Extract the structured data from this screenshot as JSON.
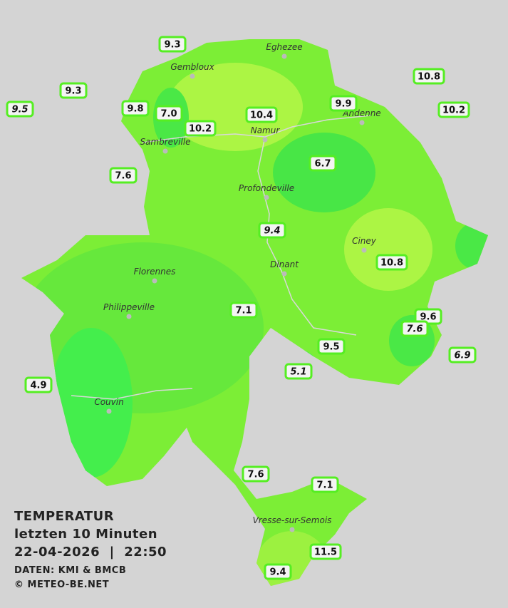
{
  "title": {
    "line1": "TEMPERATUR",
    "line2": "letzten 10 Minuten",
    "line3": "22-04-2026  |  22:50",
    "source": "DATEN: KMI & BMCB",
    "copyright": "© METEO-BE.NET"
  },
  "cities": [
    "Eghezee",
    "Gembloux",
    "Andenne",
    "Namur",
    "Sambreville",
    "Profondeville",
    "Ciney",
    "Dinant",
    "Florennes",
    "Philippeville",
    "Couvin",
    "Vresse-sur-Semois"
  ],
  "stations": [
    {
      "label": "9.3",
      "italic": false
    },
    {
      "label": "9.3",
      "italic": false
    },
    {
      "label": "9.5",
      "italic": true
    },
    {
      "label": "9.8",
      "italic": false
    },
    {
      "label": "7.0",
      "italic": false
    },
    {
      "label": "10.4",
      "italic": false
    },
    {
      "label": "10.2",
      "italic": false
    },
    {
      "label": "9.9",
      "italic": false
    },
    {
      "label": "10.8",
      "italic": false
    },
    {
      "label": "10.2",
      "italic": false
    },
    {
      "label": "7.6",
      "italic": false
    },
    {
      "label": "6.7",
      "italic": false
    },
    {
      "label": "9.4",
      "italic": true
    },
    {
      "label": "10.8",
      "italic": false
    },
    {
      "label": "7.1",
      "italic": false
    },
    {
      "label": "9.6",
      "italic": false
    },
    {
      "label": "7.6",
      "italic": true
    },
    {
      "label": "9.5",
      "italic": false
    },
    {
      "label": "6.9",
      "italic": true
    },
    {
      "label": "5.1",
      "italic": true
    },
    {
      "label": "4.9",
      "italic": false
    },
    {
      "label": "7.6",
      "italic": false
    },
    {
      "label": "7.1",
      "italic": false
    },
    {
      "label": "11.5",
      "italic": false
    },
    {
      "label": "9.4",
      "italic": false
    }
  ]
}
